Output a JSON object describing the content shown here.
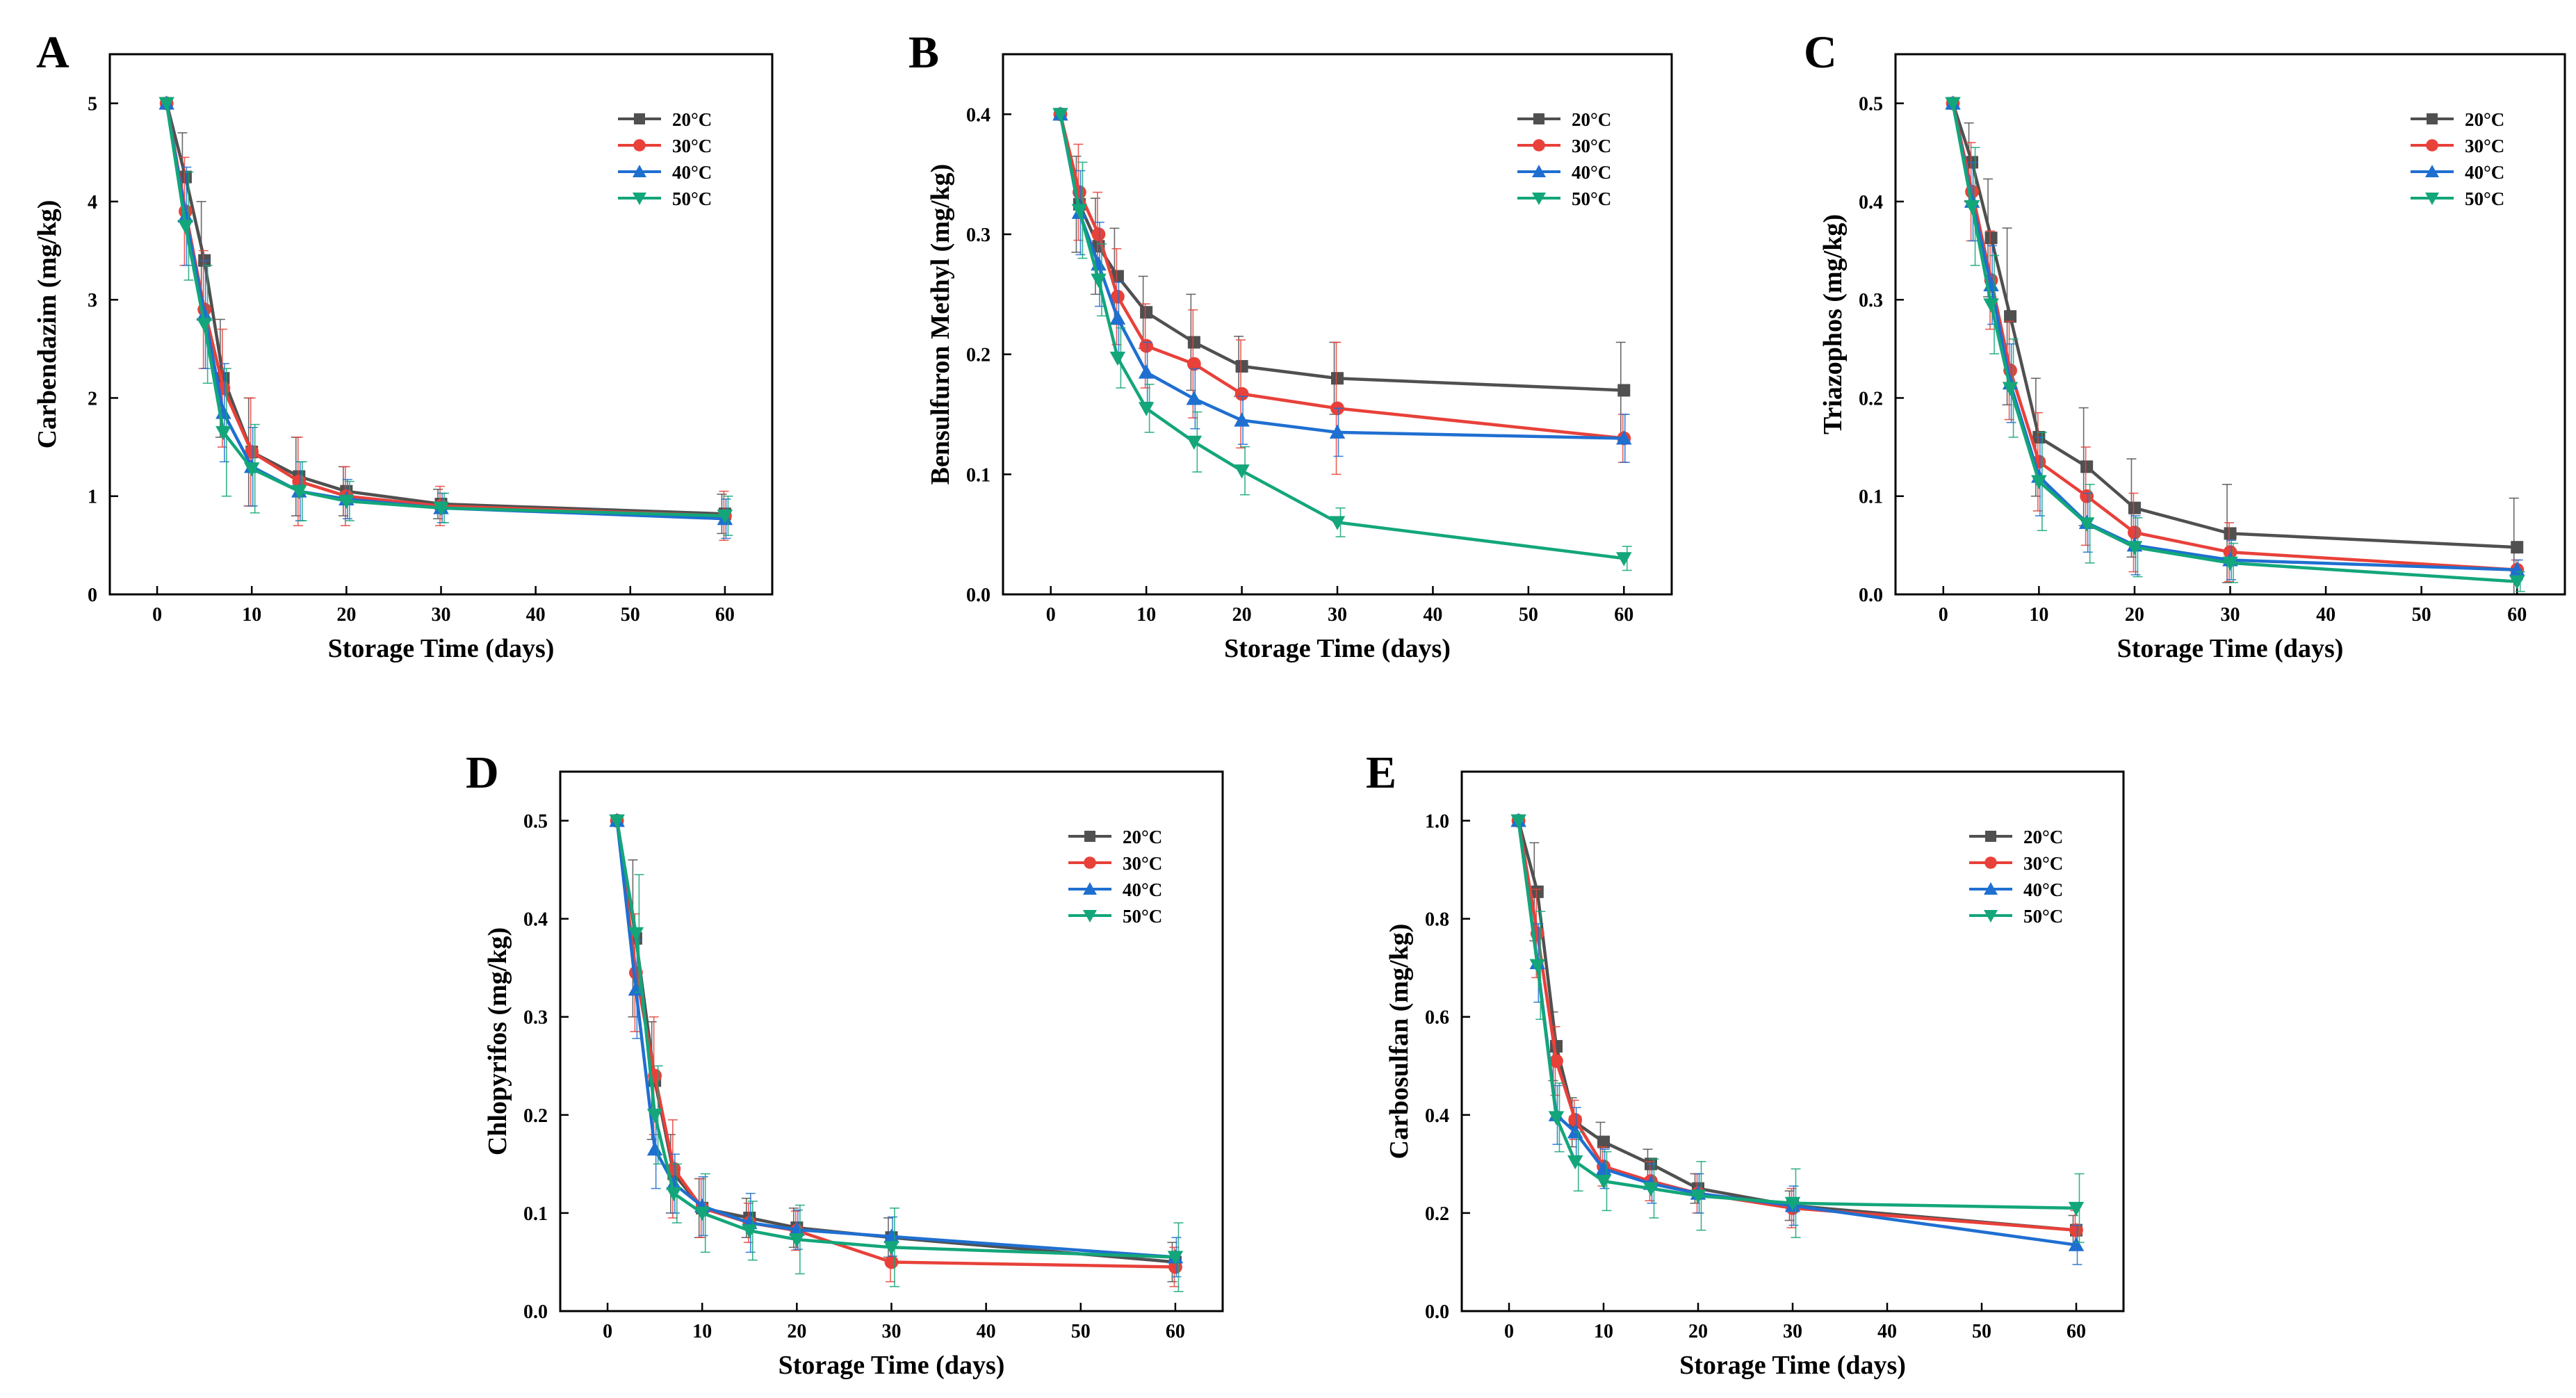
{
  "chart_data": [
    {
      "id": "A",
      "panel_label": "A",
      "type": "line",
      "title": "",
      "xlabel": "Storage Time (days)",
      "ylabel": "Carbendazim (mg/kg)",
      "xlim": [
        -5,
        65
      ],
      "ylim": [
        0,
        5.5
      ],
      "xticks": [
        0,
        10,
        20,
        30,
        40,
        50,
        60
      ],
      "xtick_labels": [
        "0",
        "10",
        "20",
        "30",
        "40",
        "50",
        "60"
      ],
      "yticks": [
        0,
        1,
        2,
        3,
        4,
        5
      ],
      "ytick_labels": [
        "0",
        "1",
        "2",
        "3",
        "4",
        "5"
      ],
      "legend_position": "top-right",
      "x": [
        1,
        3,
        5,
        7,
        10,
        15,
        20,
        30,
        60
      ],
      "series": [
        {
          "name": "20°C",
          "color": "#505050",
          "marker": "square",
          "values": [
            5.0,
            4.25,
            3.4,
            2.2,
            1.45,
            1.2,
            1.05,
            0.92,
            0.82
          ],
          "errors": [
            0,
            0.45,
            0.6,
            0.6,
            0.55,
            0.4,
            0.25,
            0.15,
            0.2
          ]
        },
        {
          "name": "30°C",
          "color": "#e8413a",
          "marker": "circle",
          "values": [
            5.0,
            3.9,
            2.9,
            2.1,
            1.45,
            1.15,
            1.0,
            0.9,
            0.8
          ],
          "errors": [
            0,
            0.55,
            0.6,
            0.6,
            0.55,
            0.45,
            0.3,
            0.2,
            0.25
          ]
        },
        {
          "name": "40°C",
          "color": "#1f6fd1",
          "marker": "triangle-up",
          "values": [
            5.0,
            3.85,
            2.85,
            1.85,
            1.3,
            1.05,
            0.97,
            0.88,
            0.77
          ],
          "errors": [
            0,
            0.5,
            0.55,
            0.5,
            0.4,
            0.3,
            0.2,
            0.15,
            0.2
          ]
        },
        {
          "name": "50°C",
          "color": "#13a67a",
          "marker": "triangle-down",
          "values": [
            5.0,
            3.75,
            2.75,
            1.65,
            1.28,
            1.05,
            0.95,
            0.88,
            0.8
          ],
          "errors": [
            0,
            0.55,
            0.6,
            0.65,
            0.45,
            0.3,
            0.2,
            0.15,
            0.2
          ]
        }
      ]
    },
    {
      "id": "B",
      "panel_label": "B",
      "type": "line",
      "title": "",
      "xlabel": "Storage Time (days)",
      "ylabel": "Bensulfuron Methyl (mg/kg)",
      "xlim": [
        -5,
        65
      ],
      "ylim": [
        0,
        0.45
      ],
      "xticks": [
        0,
        10,
        20,
        30,
        40,
        50,
        60
      ],
      "xtick_labels": [
        "0",
        "10",
        "20",
        "30",
        "40",
        "50",
        "60"
      ],
      "yticks": [
        0,
        0.1,
        0.2,
        0.3,
        0.4
      ],
      "ytick_labels": [
        "0.0",
        "0.1",
        "0.2",
        "0.3",
        "0.4"
      ],
      "legend_position": "top-right",
      "x": [
        1,
        3,
        5,
        7,
        10,
        15,
        20,
        30,
        60
      ],
      "series": [
        {
          "name": "20°C",
          "color": "#505050",
          "marker": "square",
          "values": [
            0.4,
            0.325,
            0.29,
            0.265,
            0.235,
            0.21,
            0.19,
            0.18,
            0.17
          ],
          "errors": [
            0,
            0.04,
            0.04,
            0.04,
            0.03,
            0.04,
            0.025,
            0.03,
            0.04
          ]
        },
        {
          "name": "30°C",
          "color": "#e8413a",
          "marker": "circle",
          "values": [
            0.4,
            0.335,
            0.3,
            0.248,
            0.207,
            0.192,
            0.167,
            0.155,
            0.13
          ],
          "errors": [
            0,
            0.04,
            0.035,
            0.04,
            0.035,
            0.045,
            0.045,
            0.055,
            0.02
          ]
        },
        {
          "name": "40°C",
          "color": "#1f6fd1",
          "marker": "triangle-up",
          "values": [
            0.4,
            0.318,
            0.275,
            0.23,
            0.185,
            0.163,
            0.145,
            0.135,
            0.13
          ],
          "errors": [
            0,
            0.035,
            0.035,
            0.03,
            0.025,
            0.025,
            0.02,
            0.02,
            0.02
          ]
        },
        {
          "name": "50°C",
          "color": "#13a67a",
          "marker": "triangle-down",
          "values": [
            0.4,
            0.32,
            0.262,
            0.197,
            0.155,
            0.127,
            0.103,
            0.06,
            0.03
          ],
          "errors": [
            0,
            0.04,
            0.03,
            0.025,
            0.02,
            0.025,
            0.02,
            0.012,
            0.01
          ]
        }
      ]
    },
    {
      "id": "C",
      "panel_label": "C",
      "type": "line",
      "title": "",
      "xlabel": "Storage Time (days)",
      "ylabel": "Triazophos (mg/kg)",
      "xlim": [
        -5,
        65
      ],
      "ylim": [
        0,
        0.55
      ],
      "xticks": [
        0,
        10,
        20,
        30,
        40,
        50,
        60
      ],
      "xtick_labels": [
        "0",
        "10",
        "20",
        "30",
        "40",
        "50",
        "60"
      ],
      "yticks": [
        0,
        0.1,
        0.2,
        0.3,
        0.4,
        0.5
      ],
      "ytick_labels": [
        "0.0",
        "0.1",
        "0.2",
        "0.3",
        "0.4",
        "0.5"
      ],
      "legend_position": "top-right",
      "x": [
        1,
        3,
        5,
        7,
        10,
        15,
        20,
        30,
        60
      ],
      "series": [
        {
          "name": "20°C",
          "color": "#505050",
          "marker": "square",
          "values": [
            0.5,
            0.44,
            0.363,
            0.283,
            0.16,
            0.13,
            0.088,
            0.062,
            0.048
          ],
          "errors": [
            0,
            0.04,
            0.06,
            0.09,
            0.06,
            0.06,
            0.05,
            0.05,
            0.05
          ]
        },
        {
          "name": "30°C",
          "color": "#e8413a",
          "marker": "circle",
          "values": [
            0.5,
            0.41,
            0.32,
            0.228,
            0.135,
            0.1,
            0.063,
            0.043,
            0.025
          ],
          "errors": [
            0,
            0.05,
            0.05,
            0.05,
            0.05,
            0.05,
            0.04,
            0.03,
            0.01
          ]
        },
        {
          "name": "40°C",
          "color": "#1f6fd1",
          "marker": "triangle-up",
          "values": [
            0.5,
            0.4,
            0.315,
            0.215,
            0.12,
            0.073,
            0.05,
            0.035,
            0.025
          ],
          "errors": [
            0,
            0.04,
            0.04,
            0.04,
            0.04,
            0.03,
            0.03,
            0.02,
            0.01
          ]
        },
        {
          "name": "50°C",
          "color": "#13a67a",
          "marker": "triangle-down",
          "values": [
            0.5,
            0.395,
            0.295,
            0.21,
            0.115,
            0.072,
            0.048,
            0.032,
            0.013
          ],
          "errors": [
            0,
            0.06,
            0.05,
            0.05,
            0.05,
            0.04,
            0.03,
            0.02,
            0.01
          ]
        }
      ]
    },
    {
      "id": "D",
      "panel_label": "D",
      "type": "line",
      "title": "",
      "xlabel": "Storage Time (days)",
      "ylabel": "Chlopyrifos (mg/kg)",
      "xlim": [
        -5,
        65
      ],
      "ylim": [
        0,
        0.55
      ],
      "xticks": [
        0,
        10,
        20,
        30,
        40,
        50,
        60
      ],
      "xtick_labels": [
        "0",
        "10",
        "20",
        "30",
        "40",
        "50",
        "60"
      ],
      "yticks": [
        0,
        0.1,
        0.2,
        0.3,
        0.4,
        0.5
      ],
      "ytick_labels": [
        "0.0",
        "0.1",
        "0.2",
        "0.3",
        "0.4",
        "0.5"
      ],
      "legend_position": "top-right",
      "x": [
        1,
        3,
        5,
        7,
        10,
        15,
        20,
        30,
        60
      ],
      "series": [
        {
          "name": "20°C",
          "color": "#505050",
          "marker": "square",
          "values": [
            0.5,
            0.38,
            0.235,
            0.14,
            0.105,
            0.095,
            0.085,
            0.075,
            0.05
          ],
          "errors": [
            0,
            0.08,
            0.06,
            0.04,
            0.03,
            0.02,
            0.02,
            0.02,
            0.02
          ]
        },
        {
          "name": "30°C",
          "color": "#e8413a",
          "marker": "circle",
          "values": [
            0.5,
            0.345,
            0.24,
            0.145,
            0.105,
            0.09,
            0.082,
            0.05,
            0.045
          ],
          "errors": [
            0,
            0.06,
            0.06,
            0.05,
            0.03,
            0.02,
            0.02,
            0.02,
            0.02
          ]
        },
        {
          "name": "40°C",
          "color": "#1f6fd1",
          "marker": "triangle-up",
          "values": [
            0.5,
            0.328,
            0.165,
            0.13,
            0.107,
            0.09,
            0.083,
            0.076,
            0.055
          ],
          "errors": [
            0,
            0.05,
            0.04,
            0.03,
            0.03,
            0.03,
            0.02,
            0.02,
            0.02
          ]
        },
        {
          "name": "50°C",
          "color": "#13a67a",
          "marker": "triangle-down",
          "values": [
            0.5,
            0.385,
            0.2,
            0.12,
            0.1,
            0.082,
            0.073,
            0.065,
            0.055
          ],
          "errors": [
            0,
            0.06,
            0.05,
            0.03,
            0.04,
            0.03,
            0.035,
            0.04,
            0.035
          ]
        }
      ]
    },
    {
      "id": "E",
      "panel_label": "E",
      "type": "line",
      "title": "",
      "xlabel": "Storage Time (days)",
      "ylabel": "Carbosulfan (mg/kg)",
      "xlim": [
        -5,
        65
      ],
      "ylim": [
        0,
        1.1
      ],
      "xticks": [
        0,
        10,
        20,
        30,
        40,
        50,
        60
      ],
      "xtick_labels": [
        "0",
        "10",
        "20",
        "30",
        "40",
        "50",
        "60"
      ],
      "yticks": [
        0,
        0.2,
        0.4,
        0.6,
        0.8,
        1.0
      ],
      "ytick_labels": [
        "0.0",
        "0.2",
        "0.4",
        "0.6",
        "0.8",
        "1.0"
      ],
      "legend_position": "top-right",
      "x": [
        1,
        3,
        5,
        7,
        10,
        15,
        20,
        30,
        60
      ],
      "series": [
        {
          "name": "20°C",
          "color": "#505050",
          "marker": "square",
          "values": [
            1.0,
            0.855,
            0.54,
            0.385,
            0.345,
            0.3,
            0.25,
            0.215,
            0.165
          ],
          "errors": [
            0,
            0.1,
            0.07,
            0.05,
            0.04,
            0.03,
            0.03,
            0.03,
            0.03
          ]
        },
        {
          "name": "30°C",
          "color": "#e8413a",
          "marker": "circle",
          "values": [
            1.0,
            0.77,
            0.51,
            0.39,
            0.295,
            0.265,
            0.24,
            0.21,
            0.165
          ],
          "errors": [
            0,
            0.09,
            0.07,
            0.04,
            0.04,
            0.04,
            0.04,
            0.04,
            0.04
          ]
        },
        {
          "name": "40°C",
          "color": "#1f6fd1",
          "marker": "triangle-up",
          "values": [
            1.0,
            0.71,
            0.4,
            0.365,
            0.29,
            0.26,
            0.24,
            0.215,
            0.135
          ],
          "errors": [
            0,
            0.08,
            0.06,
            0.05,
            0.04,
            0.04,
            0.04,
            0.04,
            0.04
          ]
        },
        {
          "name": "50°C",
          "color": "#13a67a",
          "marker": "triangle-down",
          "values": [
            1.0,
            0.705,
            0.395,
            0.305,
            0.265,
            0.25,
            0.235,
            0.22,
            0.21
          ],
          "errors": [
            0,
            0.11,
            0.07,
            0.06,
            0.06,
            0.06,
            0.07,
            0.07,
            0.07
          ]
        }
      ]
    }
  ]
}
